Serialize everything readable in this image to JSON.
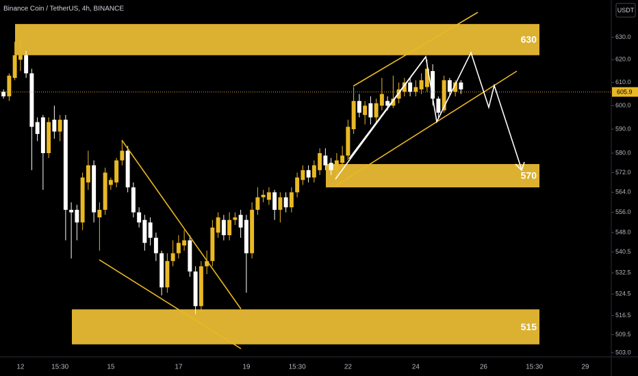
{
  "chart_data": {
    "type": "candlestick",
    "title": "Binance Coin / TetherUS, 4h, BINANCE",
    "currency": "USDT",
    "log_scale": true,
    "up_color": "#e9b825",
    "down_color": "#ffffff",
    "zone_color": "#dcb131",
    "categories": [
      null,
      null,
      null,
      "12",
      null,
      null,
      null,
      null,
      null,
      null,
      "15:30",
      null,
      null,
      null,
      null,
      null,
      null,
      null,
      null,
      "15",
      null,
      null,
      null,
      null,
      null,
      null,
      null,
      null,
      null,
      null,
      null,
      "17",
      null,
      null,
      null,
      null,
      null,
      null,
      null,
      null,
      null,
      null,
      null,
      "19",
      null,
      null,
      null,
      null,
      null,
      null,
      null,
      null,
      "15:30",
      null,
      null,
      null,
      null,
      null,
      null,
      null,
      null,
      "22",
      null,
      null,
      null,
      null,
      null,
      null,
      null,
      null,
      null,
      null,
      null,
      "24",
      null,
      null,
      null,
      null,
      null,
      null,
      null,
      null,
      null,
      null,
      null,
      "26",
      null,
      null,
      null,
      null,
      null,
      null,
      null,
      null,
      "15:30",
      null,
      null,
      null,
      null,
      null,
      null,
      null,
      null,
      "29",
      null,
      null,
      null,
      null
    ],
    "open": [
      606,
      604,
      612,
      620,
      622,
      614,
      593,
      595,
      580,
      594,
      589,
      594,
      557,
      557,
      552,
      568,
      575,
      554,
      557,
      567,
      568,
      577,
      581,
      566,
      556,
      553,
      552,
      546,
      540,
      527,
      537,
      540,
      543,
      545,
      533,
      520,
      535,
      537,
      548,
      553,
      547,
      553,
      555,
      553,
      540,
      557,
      562,
      561,
      564,
      557,
      562,
      558,
      564,
      569,
      573,
      570,
      573,
      579,
      576,
      573,
      576,
      579,
      590,
      602,
      596,
      601,
      595,
      600,
      602,
      600,
      603,
      606,
      610,
      606,
      607,
      608,
      615,
      603,
      598,
      611,
      606,
      610,
      null,
      null,
      null,
      null,
      null,
      null,
      null,
      null,
      null,
      null,
      null,
      null,
      null,
      null,
      null,
      null,
      null,
      null,
      null,
      null,
      null,
      null,
      null,
      null,
      null,
      null
    ],
    "high": [
      607,
      614,
      628,
      629,
      624,
      616,
      595,
      596,
      595,
      600,
      596,
      596,
      560,
      559,
      572,
      581,
      577,
      560,
      574,
      570,
      578,
      585,
      583,
      568,
      558,
      555,
      554,
      548,
      541,
      540,
      545,
      547,
      549,
      547,
      535,
      537,
      541,
      553,
      556,
      555,
      556,
      556,
      557,
      555,
      560,
      566,
      565,
      566,
      565,
      564,
      564,
      566,
      572,
      575,
      575,
      577,
      582,
      582,
      578,
      580,
      583,
      594,
      608,
      605,
      602,
      604,
      603,
      612,
      604,
      613,
      610,
      612,
      612,
      611,
      614,
      620,
      618,
      604,
      613,
      612,
      611,
      611,
      null,
      null,
      null,
      null,
      null,
      null,
      null,
      null,
      null,
      null,
      null,
      null,
      null,
      null,
      null,
      null,
      null,
      null,
      null,
      null,
      null,
      null,
      null,
      null,
      null,
      null
    ],
    "low": [
      603,
      602,
      611,
      615,
      612,
      573,
      585,
      565,
      578,
      586,
      585,
      545,
      538,
      545,
      549,
      565,
      552,
      541,
      555,
      565,
      566,
      575,
      564,
      554,
      550,
      541,
      543,
      537,
      524,
      525,
      535,
      538,
      541,
      531,
      517,
      518,
      532,
      535,
      546,
      545,
      545,
      551,
      546,
      525,
      538,
      555,
      560,
      559,
      553,
      552,
      556,
      556,
      562,
      567,
      568,
      568,
      571,
      573,
      571,
      570,
      574,
      577,
      588,
      595,
      592,
      592,
      593,
      598,
      598,
      599,
      601,
      604,
      604,
      604,
      605,
      606,
      600,
      595,
      597,
      604,
      604,
      605,
      null,
      null,
      null,
      null,
      null,
      null,
      null,
      null,
      null,
      null,
      null,
      null,
      null,
      null,
      null,
      null,
      null,
      null,
      null,
      null,
      null,
      null,
      null,
      null,
      null,
      null
    ],
    "close": [
      604,
      613,
      622,
      622,
      614,
      591,
      588,
      580,
      593,
      589,
      594,
      557,
      556,
      552,
      570,
      575,
      556,
      557,
      572,
      569,
      577,
      581,
      566,
      556,
      552,
      544,
      546,
      540,
      527,
      537,
      540,
      544,
      545,
      533,
      520,
      535,
      537,
      550,
      554,
      547,
      553,
      554,
      550,
      540,
      557,
      562,
      563,
      564,
      557,
      562,
      558,
      564,
      570,
      573,
      570,
      575,
      580,
      575,
      573,
      577,
      579,
      591,
      602,
      597,
      600,
      595,
      601,
      605,
      600,
      603,
      607,
      610,
      606,
      608,
      611,
      616,
      603,
      597,
      611,
      606,
      610,
      607,
      null,
      null,
      null,
      null,
      null,
      null,
      null,
      null,
      null,
      null,
      null,
      null,
      null,
      null,
      null,
      null,
      null,
      null,
      null,
      null,
      null,
      null,
      null,
      null,
      null,
      null
    ],
    "zones": [
      {
        "value": 630,
        "top": 636,
        "bottom": 622
      },
      {
        "value": 570,
        "top": 575.5,
        "bottom": 566
      },
      {
        "value": 515,
        "top": 518.8,
        "bottom": 506
      }
    ],
    "last_price": 605.9,
    "ylim": [
      501.5,
      647
    ],
    "yticks": [
      {
        "value": 630,
        "label": "630.0"
      },
      {
        "value": 620,
        "label": "620.0"
      },
      {
        "value": 610,
        "label": "610.0"
      },
      {
        "value": 600,
        "label": "600.0"
      },
      {
        "value": 590,
        "label": "590.0"
      },
      {
        "value": 580,
        "label": "580.0"
      },
      {
        "value": 572,
        "label": "572.0"
      },
      {
        "value": 564,
        "label": "564.0"
      },
      {
        "value": 556,
        "label": "556.0"
      },
      {
        "value": 548,
        "label": "548.0"
      },
      {
        "value": 540.5,
        "label": "540.5"
      },
      {
        "value": 532.5,
        "label": "532.5"
      },
      {
        "value": 524.5,
        "label": "524.5"
      },
      {
        "value": 516.5,
        "label": "516.5"
      },
      {
        "value": 509.5,
        "label": "509.5"
      },
      {
        "value": 503,
        "label": "503.0"
      }
    ]
  }
}
